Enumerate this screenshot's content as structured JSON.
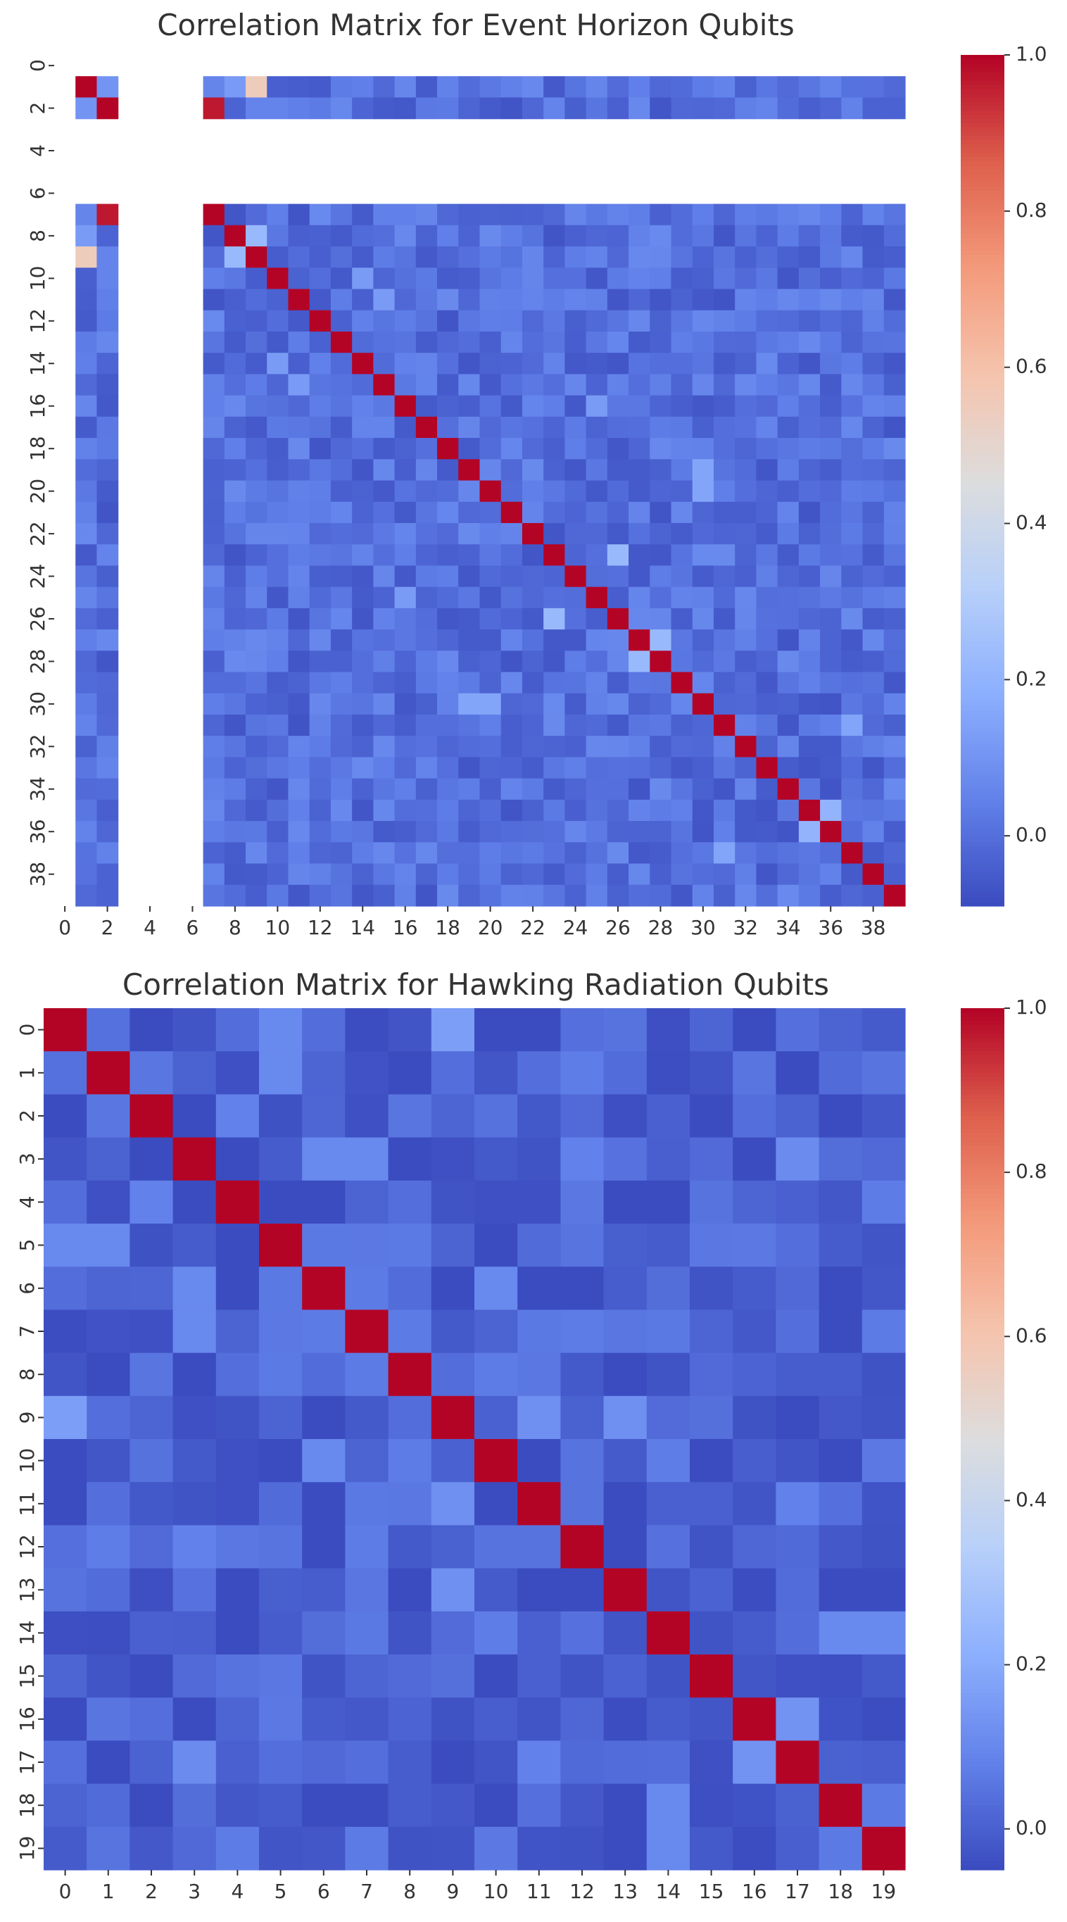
{
  "chart_data": [
    {
      "type": "heatmap",
      "title": "Correlation Matrix for Event Horizon Qubits",
      "size": 40,
      "x_tick_labels": [
        "0",
        "2",
        "4",
        "6",
        "8",
        "10",
        "12",
        "14",
        "16",
        "18",
        "20",
        "22",
        "24",
        "26",
        "28",
        "30",
        "32",
        "34",
        "36",
        "38"
      ],
      "y_tick_labels": [
        "0",
        "2",
        "4",
        "6",
        "8",
        "10",
        "12",
        "14",
        "16",
        "18",
        "20",
        "22",
        "24",
        "26",
        "28",
        "30",
        "32",
        "34",
        "36",
        "38"
      ],
      "tick_step": 2,
      "colorscale": "coolwarm",
      "colorbar": {
        "min": -0.09,
        "max": 1.0,
        "ticks": [
          "0.0",
          "0.2",
          "0.4",
          "0.6",
          "0.8",
          "1.0"
        ]
      },
      "missing_rows_cols": [
        0,
        3,
        4,
        5,
        6
      ],
      "diagonal_value": 1.0,
      "background_value": 0.0,
      "notable_cells": [
        {
          "r": 1,
          "c": 2,
          "v": 0.1
        },
        {
          "r": 2,
          "c": 7,
          "v": 0.97
        },
        {
          "r": 1,
          "c": 8,
          "v": 0.12
        },
        {
          "r": 1,
          "c": 9,
          "v": 0.55
        },
        {
          "r": 8,
          "c": 9,
          "v": 0.22
        },
        {
          "r": 23,
          "c": 26,
          "v": 0.22
        },
        {
          "r": 27,
          "c": 28,
          "v": 0.22
        },
        {
          "r": 19,
          "c": 30,
          "v": 0.15
        },
        {
          "r": 30,
          "c": 20,
          "v": 0.15
        },
        {
          "r": 35,
          "c": 36,
          "v": 0.2
        },
        {
          "r": 31,
          "c": 37,
          "v": 0.15
        },
        {
          "r": 11,
          "c": 15,
          "v": 0.12
        },
        {
          "r": 10,
          "c": 14,
          "v": 0.12
        },
        {
          "r": 14,
          "c": 10,
          "v": 0.12
        },
        {
          "r": 16,
          "c": 25,
          "v": 0.12
        }
      ]
    },
    {
      "type": "heatmap",
      "title": "Correlation Matrix for Hawking Radiation Qubits",
      "size": 20,
      "x_tick_labels": [
        "0",
        "1",
        "2",
        "3",
        "4",
        "5",
        "6",
        "7",
        "8",
        "9",
        "10",
        "11",
        "12",
        "13",
        "14",
        "15",
        "16",
        "17",
        "18",
        "19"
      ],
      "y_tick_labels": [
        "0",
        "1",
        "2",
        "3",
        "4",
        "5",
        "6",
        "7",
        "8",
        "9",
        "10",
        "11",
        "12",
        "13",
        "14",
        "15",
        "16",
        "17",
        "18",
        "19"
      ],
      "tick_step": 1,
      "colorscale": "coolwarm",
      "colorbar": {
        "min": -0.05,
        "max": 1.0,
        "ticks": [
          "0.0",
          "0.2",
          "0.4",
          "0.6",
          "0.8",
          "1.0"
        ]
      },
      "missing_rows_cols": [],
      "diagonal_value": 1.0,
      "background_value": 0.0,
      "notable_cells": [
        {
          "r": 0,
          "c": 5,
          "v": 0.1
        },
        {
          "r": 0,
          "c": 9,
          "v": 0.16
        },
        {
          "r": 1,
          "c": 5,
          "v": 0.1
        },
        {
          "r": 1,
          "c": 4,
          "v": -0.04
        },
        {
          "r": 2,
          "c": 4,
          "v": 0.08
        },
        {
          "r": 2,
          "c": 7,
          "v": -0.04
        },
        {
          "r": 3,
          "c": 6,
          "v": 0.1
        },
        {
          "r": 3,
          "c": 7,
          "v": 0.1
        },
        {
          "r": 3,
          "c": 12,
          "v": 0.08
        },
        {
          "r": 3,
          "c": 17,
          "v": 0.12
        },
        {
          "r": 4,
          "c": 10,
          "v": -0.04
        },
        {
          "r": 4,
          "c": 11,
          "v": -0.04
        },
        {
          "r": 6,
          "c": 10,
          "v": 0.1
        },
        {
          "r": 9,
          "c": 11,
          "v": 0.12
        },
        {
          "r": 9,
          "c": 13,
          "v": 0.12
        },
        {
          "r": 9,
          "c": 19,
          "v": -0.03
        },
        {
          "r": 10,
          "c": 19,
          "v": 0.06
        },
        {
          "r": 11,
          "c": 17,
          "v": 0.08
        },
        {
          "r": 13,
          "c": 9,
          "v": 0.12
        },
        {
          "r": 14,
          "c": 8,
          "v": -0.03
        },
        {
          "r": 14,
          "c": 18,
          "v": 0.08
        },
        {
          "r": 14,
          "c": 19,
          "v": 0.08
        },
        {
          "r": 16,
          "c": 17,
          "v": 0.13
        },
        {
          "r": 17,
          "c": 3,
          "v": 0.11
        },
        {
          "r": 17,
          "c": 16,
          "v": 0.13
        },
        {
          "r": 18,
          "c": 14,
          "v": 0.1
        },
        {
          "r": 19,
          "c": 14,
          "v": 0.1
        },
        {
          "r": 8,
          "c": 14,
          "v": -0.03
        },
        {
          "r": 12,
          "c": 18,
          "v": -0.02
        }
      ]
    }
  ]
}
